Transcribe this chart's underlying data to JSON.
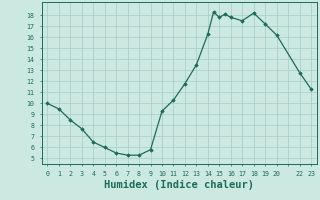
{
  "x": [
    0,
    1,
    2,
    3,
    4,
    5,
    6,
    7,
    8,
    9,
    10,
    11,
    12,
    13,
    14,
    14.5,
    15,
    15.5,
    16,
    17,
    18,
    19,
    20,
    22,
    23
  ],
  "y": [
    10,
    9.5,
    8.5,
    7.7,
    6.5,
    6.0,
    5.5,
    5.3,
    5.3,
    5.8,
    9.3,
    10.3,
    11.8,
    13.5,
    16.3,
    18.3,
    17.8,
    18.1,
    17.8,
    17.5,
    18.2,
    17.2,
    16.2,
    12.8,
    11.3
  ],
  "line_color": "#1d6b5a",
  "marker": "D",
  "marker_size": 1.8,
  "marker_lw": 0.5,
  "line_width": 0.9,
  "bg_color": "#cce9e1",
  "grid_color": "#a8ccc6",
  "xlabel": "Humidex (Indice chaleur)",
  "xlabel_fontsize": 7.5,
  "yticks": [
    5,
    6,
    7,
    8,
    9,
    10,
    11,
    12,
    13,
    14,
    15,
    16,
    17,
    18
  ],
  "ylim": [
    4.5,
    19.2
  ],
  "xlim": [
    -0.5,
    23.5
  ],
  "xtick_labels": [
    "0",
    "1",
    "2",
    "3",
    "4",
    "5",
    "6",
    "7",
    "8",
    "9",
    "10",
    "11",
    "12",
    "13",
    "14",
    "15",
    "16",
    "17",
    "18",
    "19",
    "20",
    "",
    "22",
    "23"
  ]
}
